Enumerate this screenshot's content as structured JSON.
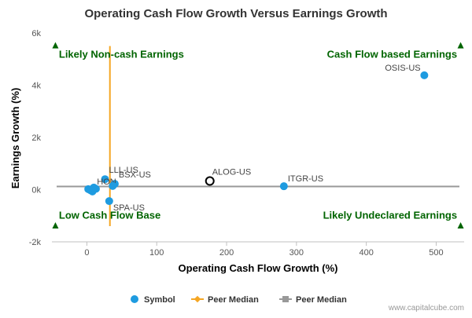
{
  "chart_data": {
    "type": "scatter",
    "title": "Operating Cash Flow Growth Versus Earnings Growth",
    "xlabel": "Operating Cash Flow Growth (%)",
    "ylabel": "Earnings Growth (%)",
    "xlim": [
      -50,
      540
    ],
    "ylim": [
      -2000,
      6000
    ],
    "x_ticks": [
      {
        "value": 0,
        "label": "0"
      },
      {
        "value": 100,
        "label": "100"
      },
      {
        "value": 200,
        "label": "200"
      },
      {
        "value": 300,
        "label": "300"
      },
      {
        "value": 400,
        "label": "400"
      },
      {
        "value": 500,
        "label": "500"
      }
    ],
    "y_ticks": [
      {
        "value": -2000,
        "label": "-2k"
      },
      {
        "value": 0,
        "label": "0k"
      },
      {
        "value": 2000,
        "label": "2k"
      },
      {
        "value": 4000,
        "label": "4k"
      },
      {
        "value": 6000,
        "label": "6k"
      }
    ],
    "peer_median_x": 33,
    "peer_median_y": 120,
    "colors": {
      "symbol": "#1E9BE0",
      "peer_median_x_line": "#F5A623",
      "peer_median_y_line": "#999999",
      "quadrant_text": "#006400",
      "highlight": "#000000"
    },
    "points": [
      {
        "label": "OSIS-US",
        "x": 483,
        "y": 4380
      },
      {
        "label": "ITGR-US",
        "x": 282,
        "y": 130
      },
      {
        "label": "LLL-US",
        "x": 26,
        "y": 400
      },
      {
        "label": "BSX-US",
        "x": 40,
        "y": 220
      },
      {
        "label": "SPA-US",
        "x": 32,
        "y": -440
      },
      {
        "label": "HON",
        "x": 10,
        "y": 80
      },
      {
        "label": "",
        "x": 5,
        "y": -20
      },
      {
        "label": "",
        "x": 8,
        "y": -70
      },
      {
        "label": "",
        "x": 2,
        "y": 20
      },
      {
        "label": "",
        "x": 13,
        "y": 30
      },
      {
        "label": "",
        "x": 37,
        "y": 140
      }
    ],
    "highlight_point": {
      "label": "ALOG-US",
      "x": 176,
      "y": 330
    },
    "quadrants": {
      "top_left": "Likely Non-cash Earnings",
      "top_right": "Cash Flow based Earnings",
      "bottom_left": "Low Cash Flow Base",
      "bottom_right": "Likely Undeclared Earnings"
    },
    "legend": [
      {
        "label": "Symbol",
        "marker": "circle"
      },
      {
        "label": "Peer Median",
        "marker": "line-diamond"
      },
      {
        "label": "Peer Median",
        "marker": "line-square"
      }
    ],
    "legend_position": "bottom-center",
    "grid": false,
    "credit": "www.capitalcube.com"
  }
}
